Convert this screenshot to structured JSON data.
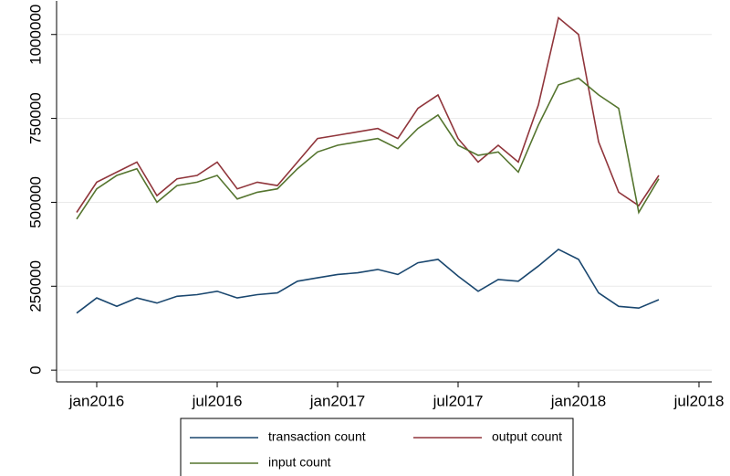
{
  "chart_data": {
    "type": "line",
    "x": [
      "2015-12",
      "2016-01",
      "2016-02",
      "2016-03",
      "2016-04",
      "2016-05",
      "2016-06",
      "2016-07",
      "2016-08",
      "2016-09",
      "2016-10",
      "2016-11",
      "2016-12",
      "2017-01",
      "2017-02",
      "2017-03",
      "2017-04",
      "2017-05",
      "2017-06",
      "2017-07",
      "2017-08",
      "2017-09",
      "2017-10",
      "2017-11",
      "2017-12",
      "2018-01",
      "2018-02",
      "2018-03",
      "2018-04",
      "2018-05"
    ],
    "series": [
      {
        "name": "transaction count",
        "color": "#1a476f",
        "values": [
          170000,
          215000,
          190000,
          215000,
          200000,
          220000,
          225000,
          235000,
          215000,
          225000,
          230000,
          265000,
          275000,
          285000,
          290000,
          300000,
          285000,
          320000,
          330000,
          280000,
          235000,
          270000,
          265000,
          310000,
          360000,
          330000,
          230000,
          190000,
          185000,
          210000
        ]
      },
      {
        "name": "output count",
        "color": "#90353b",
        "values": [
          470000,
          560000,
          590000,
          620000,
          520000,
          570000,
          580000,
          620000,
          540000,
          560000,
          550000,
          620000,
          690000,
          700000,
          710000,
          720000,
          690000,
          780000,
          820000,
          690000,
          620000,
          670000,
          620000,
          790000,
          1050000,
          1000000,
          680000,
          530000,
          490000,
          580000
        ]
      },
      {
        "name": "input count",
        "color": "#55752f",
        "values": [
          450000,
          540000,
          580000,
          600000,
          500000,
          550000,
          560000,
          580000,
          510000,
          530000,
          540000,
          600000,
          650000,
          670000,
          680000,
          690000,
          660000,
          720000,
          760000,
          670000,
          640000,
          650000,
          590000,
          730000,
          850000,
          870000,
          820000,
          780000,
          470000,
          570000
        ]
      }
    ],
    "xlim": [
      "2015-11",
      "2018-08"
    ],
    "xticks": [
      {
        "value": "2016-01",
        "label": "jan2016"
      },
      {
        "value": "2016-07",
        "label": "jul2016"
      },
      {
        "value": "2017-01",
        "label": "jan2017"
      },
      {
        "value": "2017-07",
        "label": "jul2017"
      },
      {
        "value": "2018-01",
        "label": "jan2018"
      },
      {
        "value": "2018-07",
        "label": "jul2018"
      }
    ],
    "ylim": [
      -35000,
      1100000
    ],
    "yticks": [
      0,
      250000,
      500000,
      750000,
      1000000
    ],
    "grid": true
  }
}
